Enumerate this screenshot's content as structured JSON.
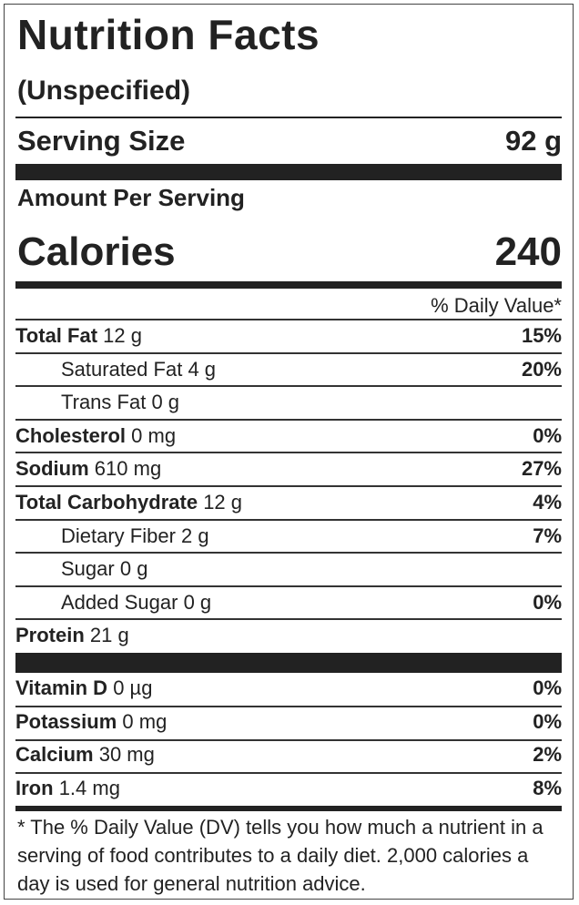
{
  "header": {
    "title": "Nutrition Facts",
    "subtitle": "(Unspecified)"
  },
  "serving": {
    "label": "Serving Size",
    "value": "92 g"
  },
  "amount_per_serving": "Amount Per Serving",
  "calories": {
    "label": "Calories",
    "value": "240"
  },
  "daily_value_header": "% Daily Value*",
  "nutrients": [
    {
      "name": "Total Fat",
      "amount": "12 g",
      "dv": "15%",
      "indent": false
    },
    {
      "name": "Saturated Fat",
      "amount": "4 g",
      "dv": "20%",
      "indent": true
    },
    {
      "name": "Trans Fat",
      "amount": "0 g",
      "dv": "",
      "indent": true
    },
    {
      "name": "Cholesterol",
      "amount": "0 mg",
      "dv": "0%",
      "indent": false
    },
    {
      "name": "Sodium",
      "amount": "610 mg",
      "dv": "27%",
      "indent": false
    },
    {
      "name": "Total Carbohydrate",
      "amount": "12 g",
      "dv": "4%",
      "indent": false
    },
    {
      "name": "Dietary Fiber",
      "amount": "2 g",
      "dv": "7%",
      "indent": true
    },
    {
      "name": "Sugar",
      "amount": "0 g",
      "dv": "",
      "indent": true
    },
    {
      "name": "Added Sugar",
      "amount": "0 g",
      "dv": "0%",
      "indent": true
    },
    {
      "name": "Protein",
      "amount": "21 g",
      "dv": "",
      "indent": false
    }
  ],
  "vitamins": [
    {
      "name": "Vitamin D",
      "amount": "0 µg",
      "dv": "0%"
    },
    {
      "name": "Potassium",
      "amount": "0 mg",
      "dv": "0%"
    },
    {
      "name": "Calcium",
      "amount": "30 mg",
      "dv": "2%"
    },
    {
      "name": "Iron",
      "amount": "1.4 mg",
      "dv": "8%"
    }
  ],
  "footnote": "* The % Daily Value (DV) tells you how much a nutrient in a serving of food contributes to a daily diet. 2,000 calories a day is used for general nutrition advice."
}
